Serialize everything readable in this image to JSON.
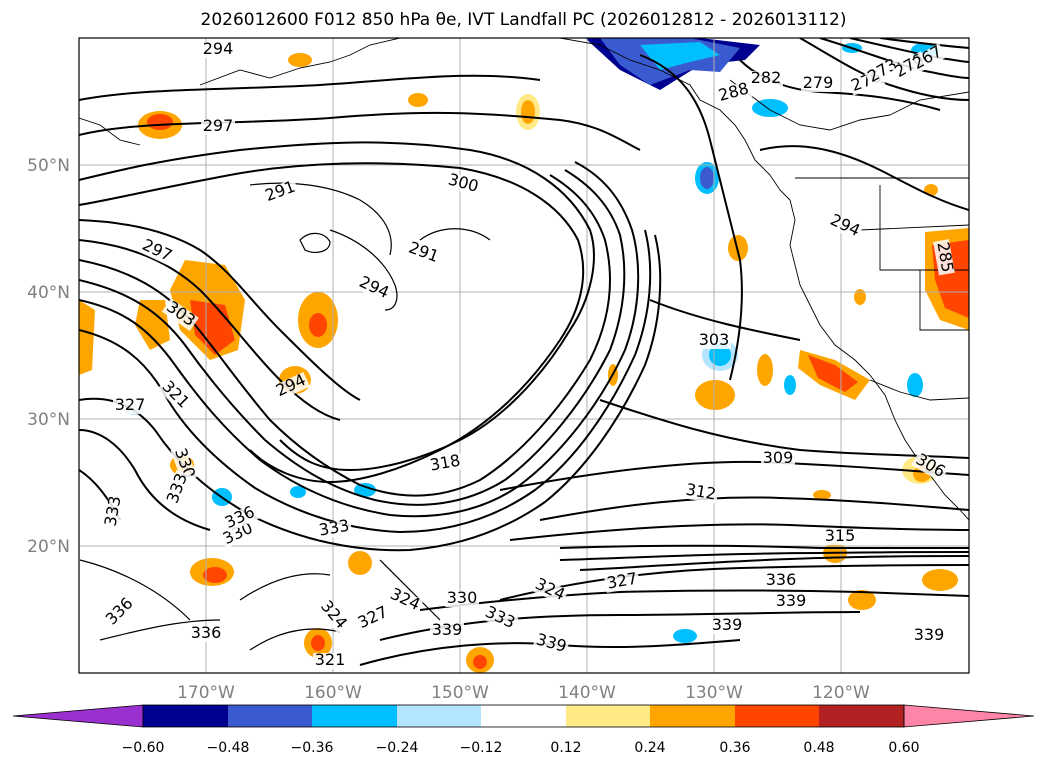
{
  "title": "2026012600 F012 850 hPa θe, IVT Landfall PC (2026012812 - 2026013112)",
  "axes": {
    "lat_ticks": [
      "50°N",
      "40°N",
      "30°N",
      "20°N"
    ],
    "lon_ticks": [
      "170°W",
      "160°W",
      "150°W",
      "140°W",
      "130°W",
      "120°W"
    ]
  },
  "contour_labels": [
    "294",
    "297",
    "291",
    "300",
    "291",
    "297",
    "294",
    "303",
    "294",
    "327",
    "321",
    "333",
    "330",
    "333",
    "336",
    "330",
    "333",
    "336",
    "336",
    "321",
    "324",
    "327",
    "324",
    "330",
    "333",
    "339",
    "339",
    "324",
    "327",
    "336",
    "339",
    "339",
    "339",
    "318",
    "312",
    "309",
    "315",
    "306",
    "303",
    "294",
    "282",
    "279",
    "276",
    "273",
    "270",
    "267",
    "288",
    "285"
  ],
  "colorbar": {
    "tick_labels": [
      "−0.60",
      "−0.48",
      "−0.36",
      "−0.24",
      "−0.12",
      "0.12",
      "0.24",
      "0.36",
      "0.48",
      "0.60"
    ],
    "colors": [
      "#9b30d0",
      "#000090",
      "#3a5bd0",
      "#00bfff",
      "#b3e5ff",
      "#ffffff",
      "#ffe985",
      "#ffa500",
      "#ff4500",
      "#b22222",
      "#ff85a8"
    ]
  },
  "chart_data": {
    "type": "map",
    "projection": "plate-carree",
    "lon_range": [
      -180,
      -110
    ],
    "lat_range": [
      10,
      60
    ],
    "field_contours": "850 hPa theta-e (K)",
    "field_shaded": "IVT landfall PC",
    "gridlines": true
  }
}
